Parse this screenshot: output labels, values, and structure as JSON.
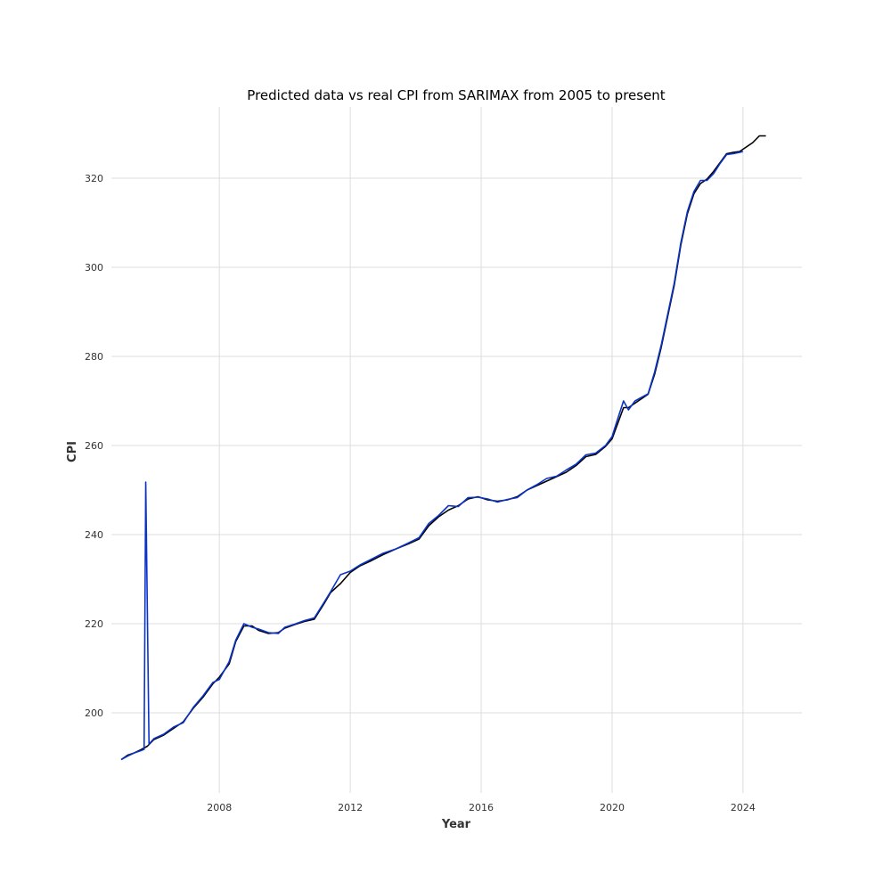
{
  "chart_data": {
    "type": "line",
    "title": "Predicted data vs real CPI from SARIMAX from 2005 to present",
    "xlabel": "Year",
    "ylabel": "CPI",
    "xlim": [
      2004.7,
      2025.8
    ],
    "ylim": [
      182,
      336
    ],
    "x_ticks": [
      2008,
      2012,
      2016,
      2020,
      2024
    ],
    "y_ticks": [
      200,
      220,
      240,
      260,
      280,
      300,
      320
    ],
    "grid": true,
    "legend": "none",
    "colors": {
      "actual": "#000000",
      "predicted": "#0a33c8",
      "grid": "#dddddd"
    },
    "series": [
      {
        "x": [
          2005.0,
          2005.2,
          2005.4,
          2005.6,
          2005.8,
          2006.0,
          2006.3,
          2006.6,
          2006.9,
          2007.2,
          2007.5,
          2007.8,
          2008.0,
          2008.3,
          2008.5,
          2008.75,
          2009.0,
          2009.2,
          2009.5,
          2009.8,
          2010.0,
          2010.3,
          2010.6,
          2010.9,
          2011.2,
          2011.4,
          2011.7,
          2012.0,
          2012.3,
          2012.6,
          2013.0,
          2013.4,
          2013.8,
          2014.1,
          2014.4,
          2014.7,
          2015.0,
          2015.3,
          2015.6,
          2015.9,
          2016.2,
          2016.5,
          2016.8,
          2017.1,
          2017.4,
          2017.7,
          2018.0,
          2018.3,
          2018.6,
          2018.9,
          2019.2,
          2019.5,
          2019.8,
          2020.0,
          2020.15,
          2020.35,
          2020.5,
          2020.7,
          2020.9,
          2021.1,
          2021.3,
          2021.5,
          2021.7,
          2021.9,
          2022.1,
          2022.3,
          2022.5,
          2022.7,
          2022.9,
          2023.1,
          2023.3,
          2023.5,
          2023.7,
          2023.9,
          2024.1,
          2024.3,
          2024.5,
          2024.7
        ],
        "values": [
          189.5,
          190.5,
          191.0,
          191.7,
          192.5,
          194.0,
          195.0,
          196.5,
          198.0,
          201.0,
          203.5,
          206.5,
          208.0,
          211.0,
          216.0,
          219.5,
          219.5,
          218.5,
          217.8,
          218.0,
          219.0,
          219.8,
          220.5,
          221.0,
          224.5,
          227.0,
          229.0,
          231.5,
          233.0,
          234.0,
          235.5,
          236.8,
          238.0,
          239.0,
          242.0,
          244.0,
          245.5,
          246.5,
          248.0,
          248.5,
          247.8,
          247.5,
          247.8,
          248.5,
          250.0,
          251.0,
          252.0,
          253.0,
          254.0,
          255.5,
          257.5,
          258.0,
          259.8,
          261.5,
          264.5,
          268.5,
          268.5,
          269.5,
          270.5,
          271.5,
          276.0,
          282.0,
          289.0,
          296.0,
          305.0,
          312.0,
          316.5,
          318.8,
          319.8,
          321.5,
          323.5,
          325.5,
          325.8,
          326.0,
          327.0,
          328.0,
          329.5,
          329.5
        ]
      },
      {
        "x": [
          2005.0,
          2005.2,
          2005.4,
          2005.6,
          2005.7,
          2005.75,
          2005.85,
          2006.0,
          2006.3,
          2006.6,
          2006.9,
          2007.2,
          2007.5,
          2007.8,
          2008.0,
          2008.3,
          2008.5,
          2008.75,
          2009.0,
          2009.2,
          2009.5,
          2009.8,
          2010.0,
          2010.3,
          2010.6,
          2010.9,
          2011.2,
          2011.4,
          2011.7,
          2012.0,
          2012.3,
          2012.6,
          2013.0,
          2013.4,
          2013.8,
          2014.1,
          2014.4,
          2014.7,
          2015.0,
          2015.3,
          2015.6,
          2015.9,
          2016.2,
          2016.5,
          2016.8,
          2017.1,
          2017.4,
          2017.7,
          2018.0,
          2018.3,
          2018.6,
          2018.9,
          2019.2,
          2019.5,
          2019.8,
          2020.0,
          2020.15,
          2020.35,
          2020.5,
          2020.7,
          2020.9,
          2021.1,
          2021.3,
          2021.5,
          2021.7,
          2021.9,
          2022.1,
          2022.3,
          2022.5,
          2022.7,
          2022.9,
          2023.1,
          2023.3,
          2023.5,
          2023.7,
          2023.9,
          2024.0
        ],
        "values": [
          189.5,
          190.3,
          191.0,
          191.5,
          191.8,
          251.8,
          193.0,
          194.2,
          195.2,
          196.8,
          197.8,
          201.2,
          203.8,
          206.8,
          207.5,
          211.5,
          216.3,
          220.0,
          219.2,
          218.8,
          218.0,
          217.8,
          219.2,
          219.9,
          220.7,
          221.3,
          224.8,
          227.2,
          231.0,
          231.8,
          233.2,
          234.3,
          235.8,
          236.8,
          238.2,
          239.3,
          242.5,
          244.3,
          246.5,
          246.3,
          248.3,
          248.4,
          248.0,
          247.3,
          247.9,
          248.3,
          250.0,
          251.2,
          252.6,
          253.1,
          254.5,
          255.8,
          257.9,
          258.3,
          260.0,
          262.0,
          265.5,
          270.0,
          268.0,
          270.0,
          270.8,
          271.6,
          276.5,
          282.5,
          289.5,
          296.5,
          305.5,
          312.5,
          317.0,
          319.5,
          319.5,
          321.0,
          323.3,
          325.3,
          325.5,
          325.8,
          326.0
        ]
      }
    ]
  }
}
